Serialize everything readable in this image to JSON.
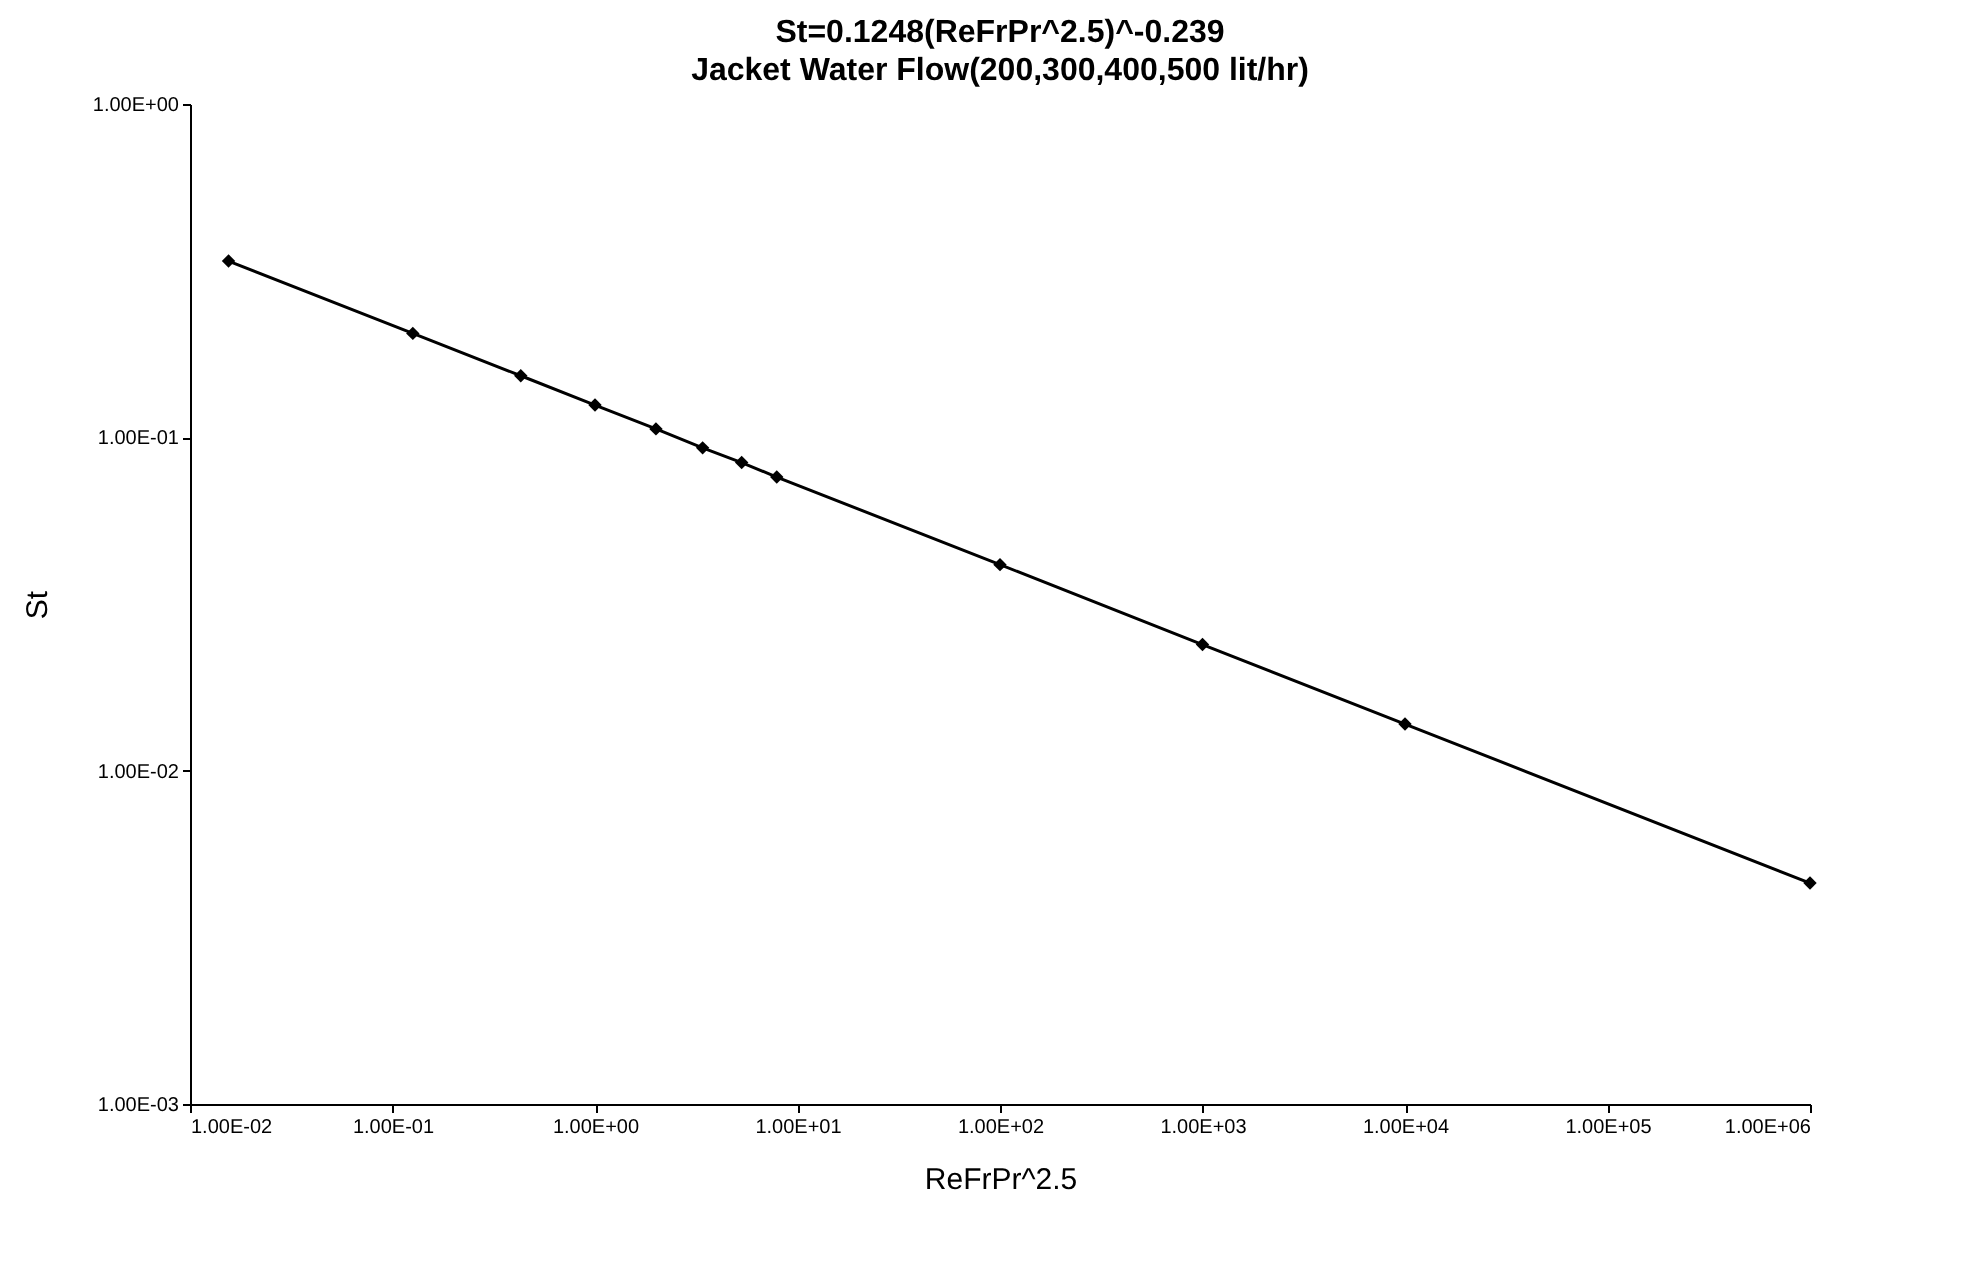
{
  "chart_data": {
    "type": "line",
    "title": "St=0.1248(ReFrPr^2.5)^-0.239",
    "subtitle": "Jacket Water Flow(200,300,400,500 lit/hr)",
    "xlabel": "ReFrPr^2.5",
    "ylabel": "St",
    "x": [
      0.0155,
      0.126,
      0.43,
      1.0,
      2.0,
      3.4,
      5.3,
      7.9,
      100,
      1000,
      10000,
      1000000
    ],
    "series": [
      {
        "color": "#000000",
        "values": [
          0.338,
          0.205,
          0.153,
          0.125,
          0.106,
          0.093,
          0.084,
          0.076,
          0.0415,
          0.0239,
          0.0138,
          0.0046
        ]
      }
    ],
    "log": "xy",
    "xlim": [
      0.01,
      1000000
    ],
    "ylim": [
      0.001,
      1
    ],
    "xticks": [
      {
        "value": 0.01,
        "label": "1.00E-02"
      },
      {
        "value": 0.1,
        "label": "1.00E-01"
      },
      {
        "value": 1,
        "label": "1.00E+00"
      },
      {
        "value": 10,
        "label": "1.00E+01"
      },
      {
        "value": 100,
        "label": "1.00E+02"
      },
      {
        "value": 1000,
        "label": "1.00E+03"
      },
      {
        "value": 10000,
        "label": "1.00E+04"
      },
      {
        "value": 100000,
        "label": "1.00E+05"
      },
      {
        "value": 1000000,
        "label": "1.00E+06"
      }
    ],
    "yticks": [
      {
        "value": 0.001,
        "label": "1.00E-03"
      },
      {
        "value": 0.01,
        "label": "1.00E-02"
      },
      {
        "value": 0.1,
        "label": "1.00E-01"
      },
      {
        "value": 1,
        "label": "1.00E+00"
      }
    ],
    "grid": false,
    "marker": "diamond",
    "line_style": "solid"
  }
}
